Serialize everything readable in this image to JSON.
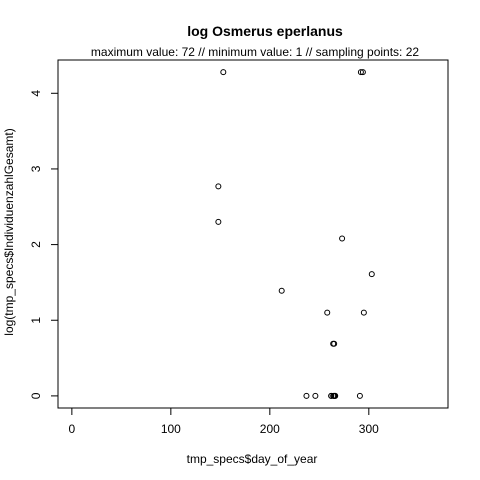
{
  "chart_data": {
    "type": "scatter",
    "title": "log Osmerus eperlanus",
    "subtitle": "maximum value: 72  //  minimum value: 1  // sampling points: 22",
    "xlabel": "tmp_specs$day_of_year",
    "ylabel": "log(tmp_specs$IndividuenzahlGesamt)",
    "xlim": [
      -14,
      380
    ],
    "ylim": [
      -0.16,
      4.44
    ],
    "xticks": [
      0,
      100,
      200,
      300
    ],
    "yticks": [
      0,
      1,
      2,
      3,
      4
    ],
    "grid": false,
    "legend": "none",
    "x": [
      153,
      148,
      148,
      212,
      258,
      264,
      265,
      273,
      292,
      294,
      295,
      303,
      237,
      246,
      262,
      264,
      265,
      266,
      291,
      262,
      265,
      266
    ],
    "y": [
      4.28,
      2.77,
      2.3,
      1.39,
      1.1,
      0.69,
      0.69,
      2.08,
      4.28,
      4.28,
      1.1,
      1.61,
      0,
      0,
      0,
      0,
      0,
      0,
      0,
      0,
      0,
      0
    ],
    "point_color": "#000000"
  }
}
